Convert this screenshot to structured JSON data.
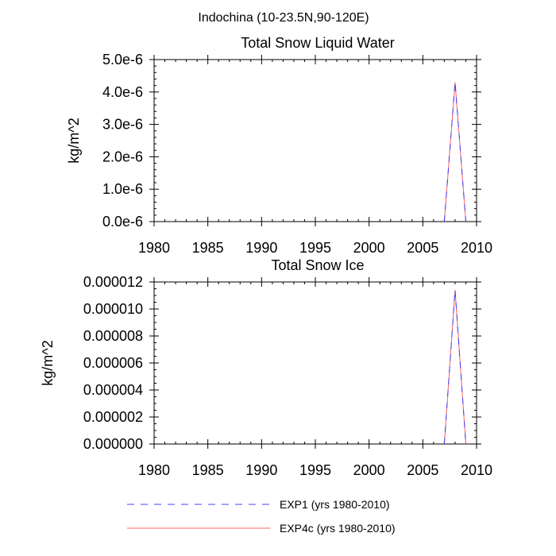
{
  "figure_title": "Indochina (10-23.5N,90-120E)",
  "legend": [
    {
      "label": "EXP1 (yrs 1980-2010)",
      "color": "#4040ff",
      "style": "dashed"
    },
    {
      "label": "EXP4c (yrs 1980-2010)",
      "color": "#ff6060",
      "style": "solid"
    }
  ],
  "chart_data": [
    {
      "type": "line",
      "title": "Total Snow Liquid Water",
      "xlabel": "",
      "ylabel": "kg/m^2",
      "xlim": [
        1980,
        2010
      ],
      "ylim": [
        0,
        5e-06
      ],
      "xticks": [
        1980,
        1985,
        1990,
        1995,
        2000,
        2005,
        2010
      ],
      "xtick_labels": [
        "1980",
        "1985",
        "1990",
        "1995",
        "2000",
        "2005",
        "2010"
      ],
      "yticks": [
        0,
        1e-06,
        2e-06,
        3e-06,
        4e-06,
        5e-06
      ],
      "ytick_labels": [
        "0.0e-6",
        "1.0e-6",
        "2.0e-6",
        "3.0e-6",
        "4.0e-6",
        "5.0e-6"
      ],
      "series": [
        {
          "name": "EXP1 (yrs 1980-2010)",
          "x": [
            2007,
            2008,
            2009
          ],
          "values": [
            0,
            4.3e-06,
            0
          ]
        },
        {
          "name": "EXP4c (yrs 1980-2010)",
          "x": [
            2007,
            2008,
            2009
          ],
          "values": [
            0,
            4.3e-06,
            0
          ]
        }
      ]
    },
    {
      "type": "line",
      "title": "Total Snow Ice",
      "xlabel": "",
      "ylabel": "kg/m^2",
      "xlim": [
        1980,
        2010
      ],
      "ylim": [
        0,
        1.2e-05
      ],
      "xticks": [
        1980,
        1985,
        1990,
        1995,
        2000,
        2005,
        2010
      ],
      "xtick_labels": [
        "1980",
        "1985",
        "1990",
        "1995",
        "2000",
        "2005",
        "2010"
      ],
      "yticks": [
        0,
        2e-06,
        4e-06,
        6e-06,
        8e-06,
        1e-05,
        1.2e-05
      ],
      "ytick_labels": [
        "0.000000",
        "0.000002",
        "0.000004",
        "0.000006",
        "0.000008",
        "0.000010",
        "0.000012"
      ],
      "series": [
        {
          "name": "EXP1 (yrs 1980-2010)",
          "x": [
            2007,
            2008,
            2009
          ],
          "values": [
            0,
            1.14e-05,
            0
          ]
        },
        {
          "name": "EXP4c (yrs 1980-2010)",
          "x": [
            2007,
            2008,
            2009
          ],
          "values": [
            0,
            1.14e-05,
            0
          ]
        }
      ]
    }
  ]
}
